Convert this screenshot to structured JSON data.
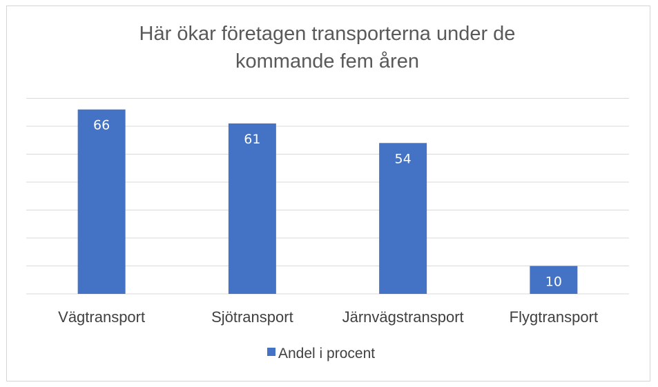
{
  "chart_data": {
    "type": "bar",
    "title_lines": [
      "Här ökar företagen transporterna under de",
      "kommande fem åren"
    ],
    "categories": [
      "Vägtransport",
      "Sjötransport",
      "Järnvägstransport",
      "Flygtransport"
    ],
    "series": [
      {
        "name": "Andel i procent",
        "color": "#4472c4",
        "values": [
          66,
          61,
          54,
          10
        ]
      }
    ],
    "ylim": [
      0,
      70
    ],
    "y_gridline_step": 10,
    "grid": true,
    "show_data_labels": true,
    "legend_position": "bottom"
  }
}
